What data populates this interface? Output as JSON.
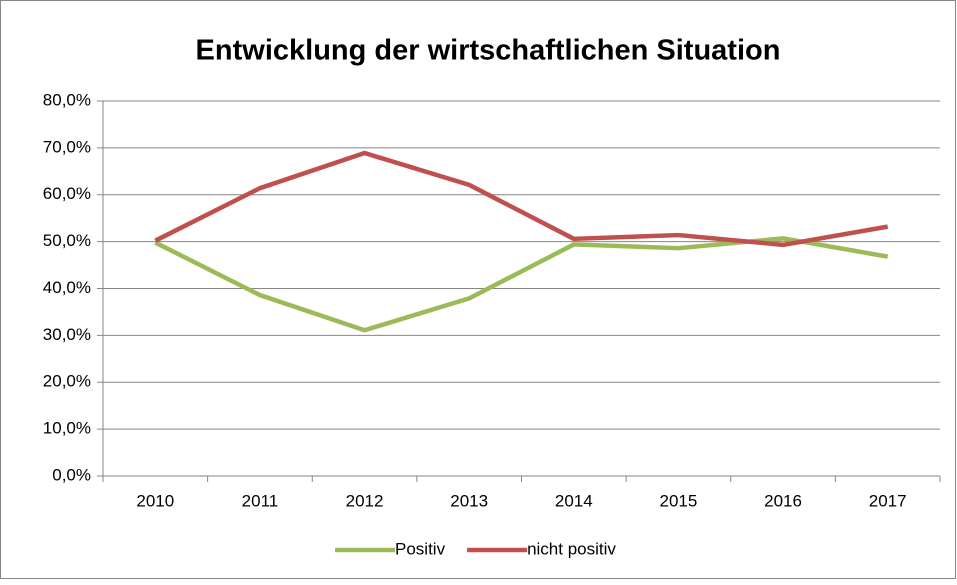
{
  "chart_data": {
    "type": "line",
    "title": "Entwicklung der wirtschaftlichen Situation",
    "categories": [
      "2010",
      "2011",
      "2012",
      "2013",
      "2014",
      "2015",
      "2016",
      "2017"
    ],
    "series": [
      {
        "name": "Positiv",
        "color": "#9bbb59",
        "values": [
          49.8,
          38.6,
          31.1,
          37.9,
          49.4,
          48.6,
          50.7,
          46.8
        ]
      },
      {
        "name": "nicht positiv",
        "color": "#c0504d",
        "values": [
          50.2,
          61.4,
          68.9,
          62.1,
          50.6,
          51.4,
          49.3,
          53.2
        ]
      }
    ],
    "ylim": [
      0,
      80
    ],
    "yticks": [
      {
        "value": 0,
        "label": "0,0%"
      },
      {
        "value": 10,
        "label": "10,0%"
      },
      {
        "value": 20,
        "label": "20,0%"
      },
      {
        "value": 30,
        "label": "30,0%"
      },
      {
        "value": 40,
        "label": "40,0%"
      },
      {
        "value": 50,
        "label": "50,0%"
      },
      {
        "value": 60,
        "label": "60,0%"
      },
      {
        "value": 70,
        "label": "70,0%"
      },
      {
        "value": 80,
        "label": "80,0%"
      }
    ],
    "grid": true,
    "legend": "bottom"
  }
}
